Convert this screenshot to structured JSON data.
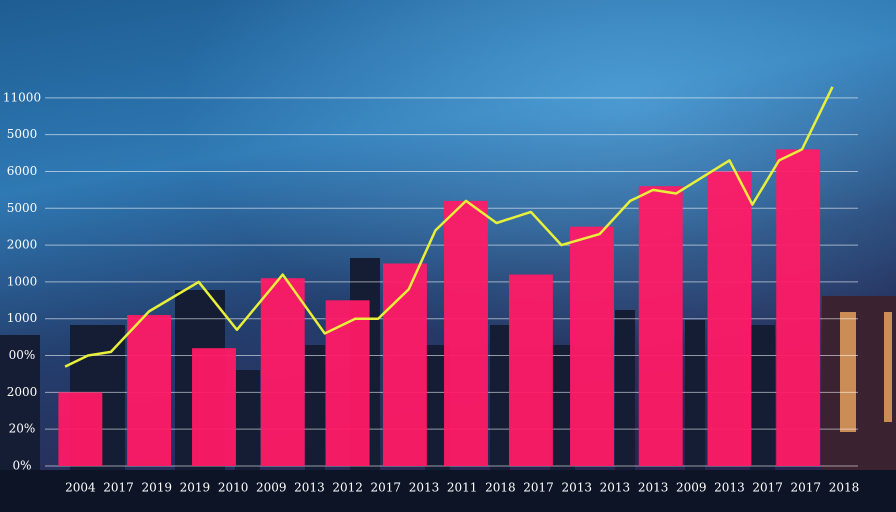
{
  "chart_data": {
    "type": "combo",
    "xlim": [
      -2,
      21.1
    ],
    "ylim": [
      0,
      11
    ],
    "grid": true,
    "yticks": [
      {
        "value": 0,
        "label": "0%"
      },
      {
        "value": 1,
        "label": "20%"
      },
      {
        "value": 2,
        "label": "2000"
      },
      {
        "value": 3,
        "label": "00%"
      },
      {
        "value": 4,
        "label": "1000"
      },
      {
        "value": 5,
        "label": "1000"
      },
      {
        "value": 6,
        "label": "2000"
      },
      {
        "value": 7,
        "label": "5000"
      },
      {
        "value": 8,
        "label": "6000"
      },
      {
        "value": 9,
        "label": "5000"
      },
      {
        "value": 10,
        "label": "11000"
      }
    ],
    "xticks": [
      {
        "value": 0,
        "label": "2004"
      },
      {
        "value": 1,
        "label": "2017"
      },
      {
        "value": 2,
        "label": "2019"
      },
      {
        "value": 3,
        "label": "2019"
      },
      {
        "value": 4,
        "label": "2010"
      },
      {
        "value": 5,
        "label": "2009"
      },
      {
        "value": 6,
        "label": "2013"
      },
      {
        "value": 7,
        "label": "2012"
      },
      {
        "value": 8,
        "label": "2017"
      },
      {
        "value": 9,
        "label": "2013"
      },
      {
        "value": 10,
        "label": "2011"
      },
      {
        "value": 11,
        "label": "2018"
      },
      {
        "value": 12,
        "label": "2017"
      },
      {
        "value": 13,
        "label": "2013"
      },
      {
        "value": 14,
        "label": "2013"
      },
      {
        "value": 15,
        "label": "2013"
      },
      {
        "value": 16,
        "label": "2009"
      },
      {
        "value": 17,
        "label": "2013"
      },
      {
        "value": 18,
        "label": "2017"
      },
      {
        "value": 19,
        "label": "2017"
      },
      {
        "value": 20,
        "label": "2018"
      }
    ],
    "bars": {
      "color": "#ff1a66",
      "x": [
        0,
        1.8,
        3.5,
        5.3,
        7,
        8.5,
        10.1,
        11.8,
        13.4,
        15.2,
        17,
        18.8
      ],
      "values": [
        2.0,
        4.1,
        3.2,
        5.1,
        4.5,
        5.5,
        7.2,
        5.2,
        6.5,
        7.6,
        8.0,
        8.6
      ]
    },
    "line": {
      "color": "#e8f03a",
      "x": [
        -0.4,
        0.2,
        0.8,
        1.8,
        3.1,
        4.1,
        5.3,
        6.4,
        7.2,
        7.8,
        8.6,
        9.3,
        10.1,
        10.9,
        11.8,
        12.6,
        13.6,
        14.4,
        15,
        15.6,
        17,
        17.6,
        18.3,
        18.9,
        19.7
      ],
      "values": [
        2.7,
        3.0,
        3.1,
        4.2,
        5.0,
        3.7,
        5.2,
        3.6,
        4.0,
        4.0,
        4.8,
        6.4,
        7.2,
        6.6,
        6.9,
        6.0,
        6.3,
        7.2,
        7.5,
        7.4,
        8.3,
        7.1,
        8.3,
        8.6,
        10.3
      ]
    }
  }
}
